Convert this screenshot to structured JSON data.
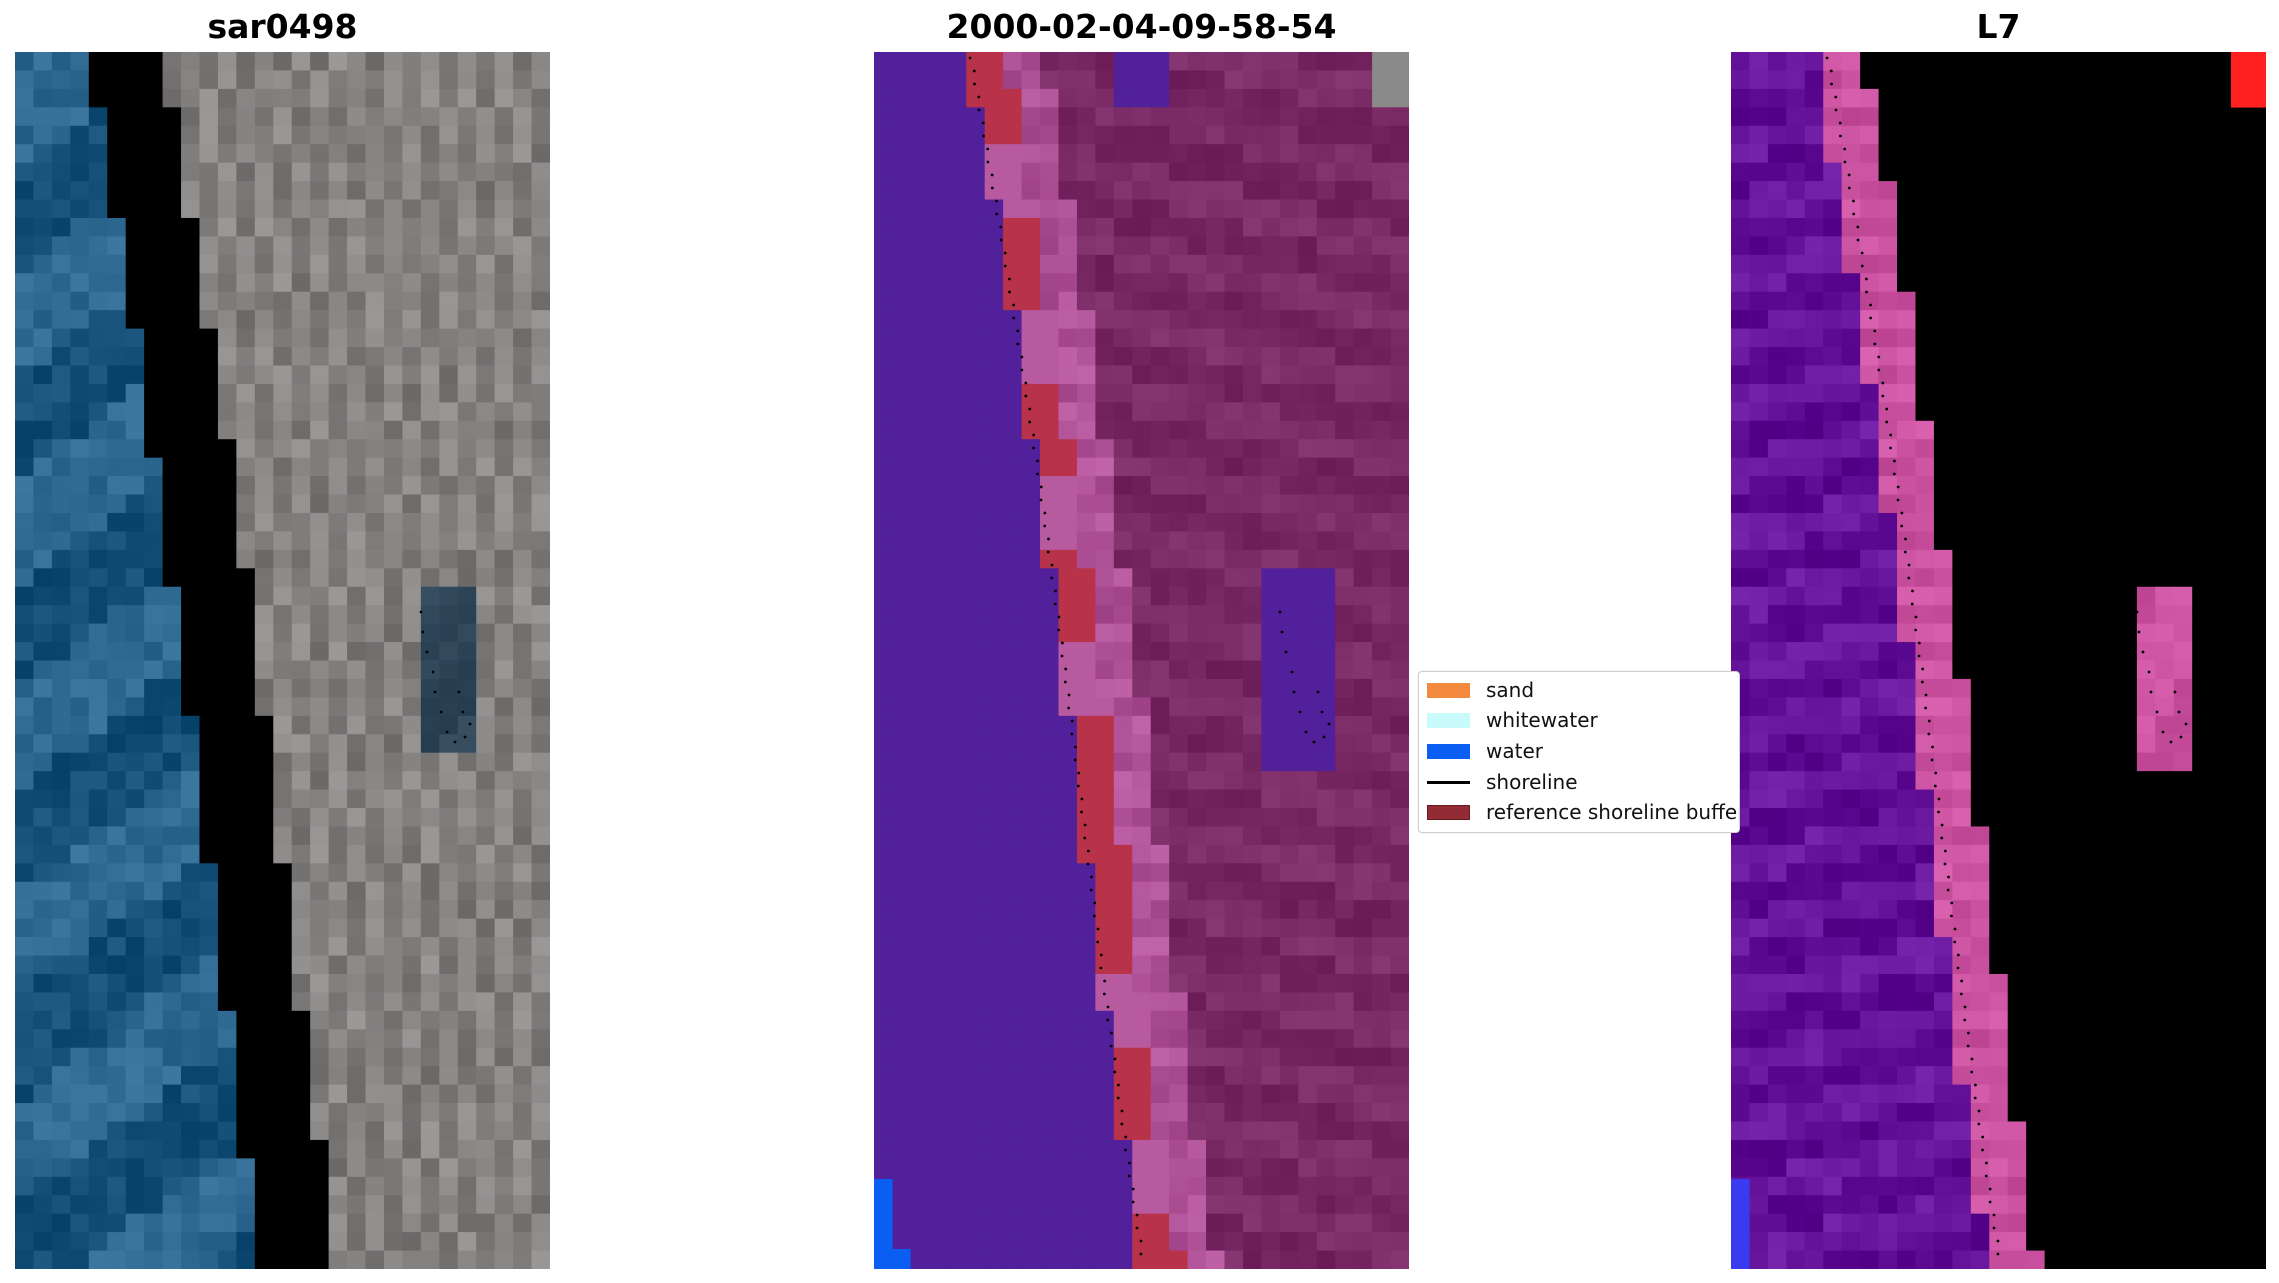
{
  "figure": {
    "panels": [
      {
        "title": "sar0498",
        "kind": "rgb"
      },
      {
        "title": "2000-02-04-09-58-54",
        "kind": "classified"
      },
      {
        "title": "L7",
        "kind": "index"
      }
    ],
    "legend": {
      "items": [
        {
          "label": "sand",
          "type": "patch",
          "color": "#f48a3d"
        },
        {
          "label": "whitewater",
          "type": "patch",
          "color": "#c9fbfb"
        },
        {
          "label": "water",
          "type": "patch",
          "color": "#0a5ef2"
        },
        {
          "label": "shoreline",
          "type": "line",
          "color": "#000000"
        },
        {
          "label": "reference shoreline buffer",
          "type": "patch",
          "color": "#922b34"
        }
      ]
    },
    "colors": {
      "rgb_water": "#2f6a93",
      "rgb_foam": "#eceef4",
      "rgb_land": "#8f8c8c",
      "class_background": "#51209a",
      "class_land": "#7f2f6a",
      "class_beach": "#b85aa0",
      "class_buffer": "#b8334a",
      "class_water_patch": "#0a5ef2",
      "index_water": "#6d1aa2",
      "index_land": "#cc0f45",
      "index_beach": "#d35aa8",
      "index_corner": "#ff2020",
      "shoreline_dots": "#000000"
    }
  }
}
